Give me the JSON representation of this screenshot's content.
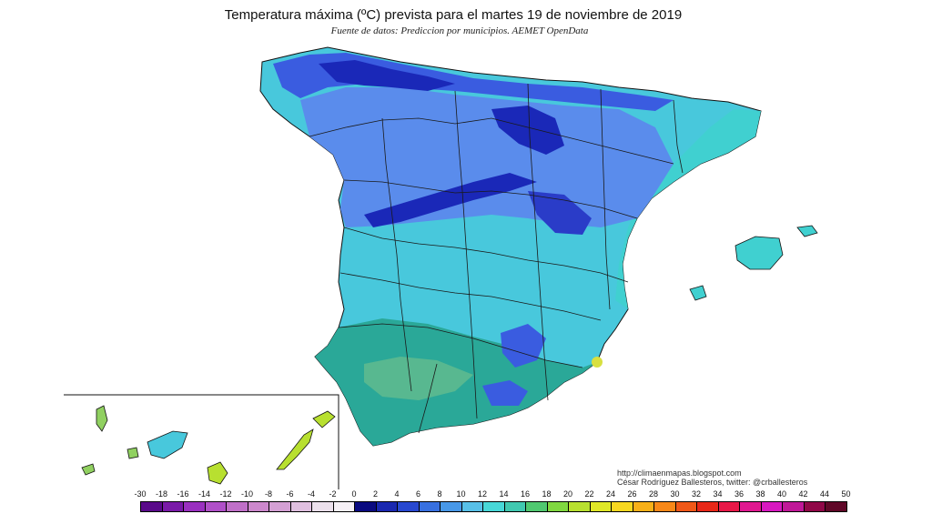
{
  "header": {
    "title": "Temperatura máxima (ºC) prevista para el martes 19 de noviembre de 2019",
    "subtitle": "Fuente de datos: Prediccion por municipios. AEMET OpenData"
  },
  "credits": {
    "line1": "http://climaenmapas.blogspot.com",
    "line2": "César Rodríguez Ballesteros, twitter: @crballesteros"
  },
  "legend": {
    "labels": [
      "-30",
      "-18",
      "-16",
      "-14",
      "-12",
      "-10",
      "-8",
      "-6",
      "-4",
      "-2",
      "0",
      "2",
      "4",
      "6",
      "8",
      "10",
      "12",
      "14",
      "16",
      "18",
      "20",
      "22",
      "24",
      "26",
      "28",
      "30",
      "32",
      "34",
      "36",
      "38",
      "40",
      "42",
      "44",
      "50"
    ],
    "colors": [
      "#5a0a8a",
      "#7a1aa8",
      "#9a30c0",
      "#b050c8",
      "#c070c8",
      "#cc88cc",
      "#d4a0d4",
      "#e0c0e0",
      "#ece0ec",
      "#f6f0f6",
      "#0a0a80",
      "#1a28b0",
      "#2848d0",
      "#3870e0",
      "#4898e8",
      "#58c0e8",
      "#48d8d8",
      "#40c8b0",
      "#50c870",
      "#80d840",
      "#b8e030",
      "#e0e828",
      "#f8d820",
      "#f8b018",
      "#f88818",
      "#f05818",
      "#e82818",
      "#e81848",
      "#e01890",
      "#d818c0",
      "#c01898",
      "#900848",
      "#600828"
    ]
  },
  "map": {
    "region_colors": {
      "cold_deep": "#1a28b8",
      "cold": "#3a5ce0",
      "cool": "#5a8cec",
      "mild": "#48c8dc",
      "mild_teal": "#40d0d0",
      "warm": "#2aa898",
      "warm_green": "#60c080",
      "yellow": "#d8e040"
    }
  }
}
